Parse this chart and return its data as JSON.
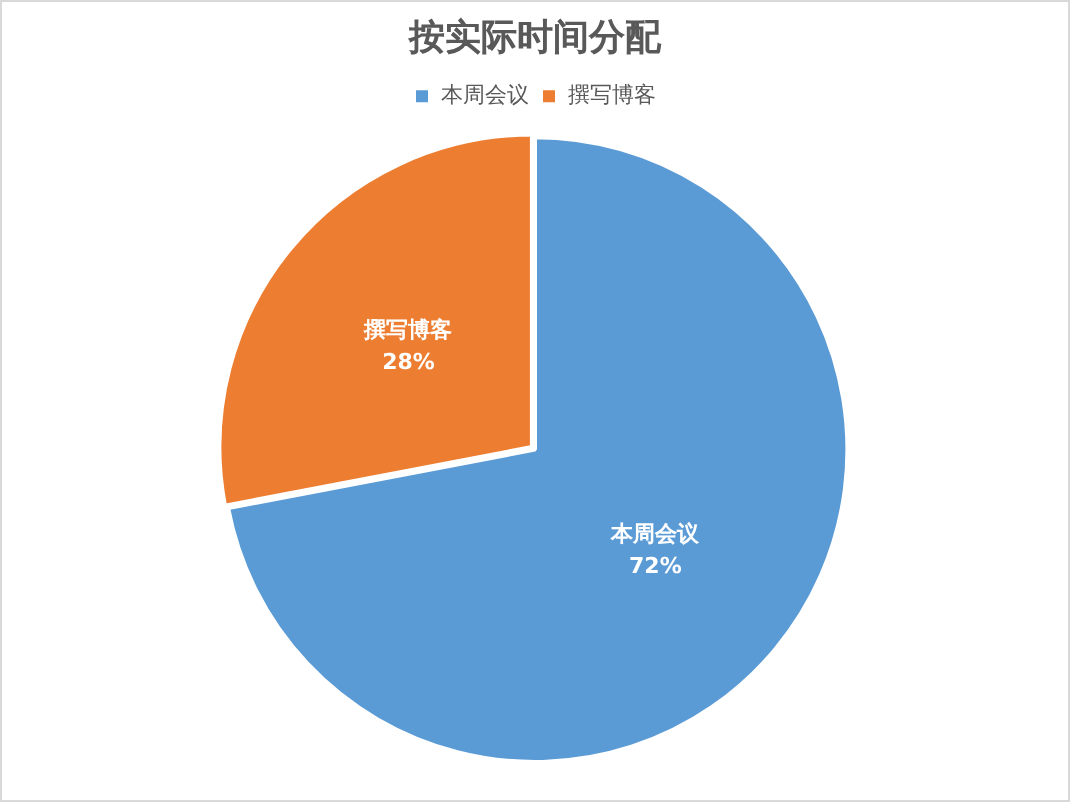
{
  "chart_data": {
    "type": "pie",
    "title": "按实际时间分配",
    "categories": [
      "本周会议",
      "撰写博客"
    ],
    "values": [
      72,
      28
    ],
    "colors": [
      "#5b9bd5",
      "#ed7d31"
    ],
    "value_labels": [
      "72%",
      "28%"
    ],
    "legend": "top"
  }
}
